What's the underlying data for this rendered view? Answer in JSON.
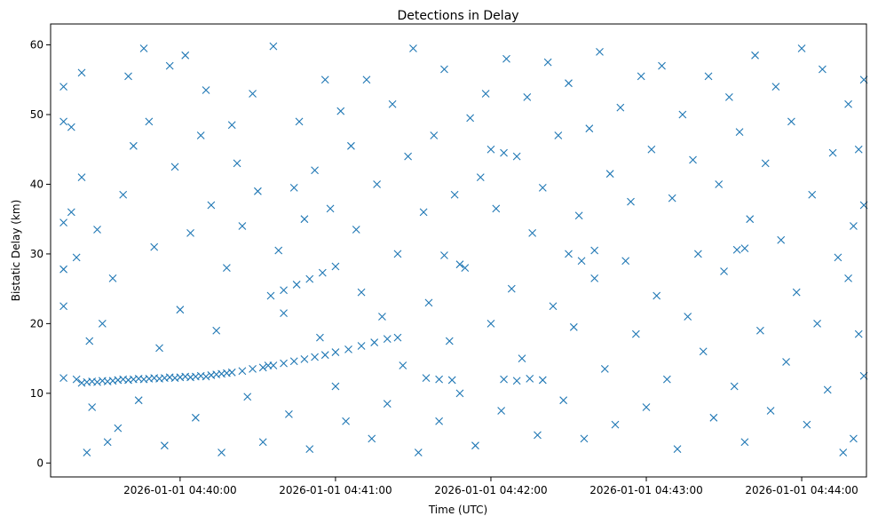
{
  "chart_data": {
    "type": "scatter",
    "title": "Detections in Delay",
    "xlabel": "Time (UTC)",
    "ylabel": "Bistatic Delay (km)",
    "x_ticks": [
      "2026-01-01 04:40:00",
      "2026-01-01 04:41:00",
      "2026-01-01 04:42:00",
      "2026-01-01 04:43:00",
      "2026-01-01 04:44:00"
    ],
    "y_ticks": [
      "0",
      "10",
      "20",
      "30",
      "40",
      "50",
      "60"
    ],
    "xlim": [
      "2026-01-01 04:39:10",
      "2026-01-01 04:44:25"
    ],
    "ylim": [
      -2,
      63
    ],
    "marker": "x",
    "color": "#1f77b4",
    "grid": false,
    "x_format": "time-of-day (HH:MM:SS) on 2026-01-01",
    "series": [
      {
        "points": [
          [
            "04:39:20",
            12.0
          ],
          [
            "04:39:22",
            11.5
          ],
          [
            "04:39:24",
            11.6
          ],
          [
            "04:39:26",
            11.7
          ],
          [
            "04:39:28",
            11.6
          ],
          [
            "04:39:30",
            11.8
          ],
          [
            "04:39:32",
            11.7
          ],
          [
            "04:39:34",
            11.8
          ],
          [
            "04:39:36",
            11.9
          ],
          [
            "04:39:38",
            12.0
          ],
          [
            "04:39:40",
            11.9
          ],
          [
            "04:39:42",
            12.0
          ],
          [
            "04:39:44",
            12.1
          ],
          [
            "04:39:46",
            12.0
          ],
          [
            "04:39:48",
            12.1
          ],
          [
            "04:39:50",
            12.2
          ],
          [
            "04:39:52",
            12.1
          ],
          [
            "04:39:54",
            12.2
          ],
          [
            "04:39:56",
            12.3
          ],
          [
            "04:39:58",
            12.2
          ],
          [
            "04:40:00",
            12.3
          ],
          [
            "04:40:02",
            12.4
          ],
          [
            "04:40:04",
            12.3
          ],
          [
            "04:40:06",
            12.4
          ],
          [
            "04:40:08",
            12.5
          ],
          [
            "04:40:10",
            12.4
          ],
          [
            "04:40:12",
            12.6
          ],
          [
            "04:40:14",
            12.7
          ],
          [
            "04:40:16",
            12.8
          ],
          [
            "04:40:18",
            12.9
          ],
          [
            "04:40:20",
            13.0
          ],
          [
            "04:40:24",
            13.2
          ],
          [
            "04:40:28",
            13.5
          ],
          [
            "04:40:32",
            13.7
          ],
          [
            "04:40:36",
            14.0
          ],
          [
            "04:40:40",
            14.3
          ],
          [
            "04:40:44",
            14.6
          ],
          [
            "04:40:48",
            14.9
          ],
          [
            "04:40:52",
            15.2
          ],
          [
            "04:40:56",
            15.5
          ],
          [
            "04:41:00",
            15.9
          ],
          [
            "04:41:05",
            16.3
          ],
          [
            "04:41:10",
            16.8
          ],
          [
            "04:41:15",
            17.3
          ],
          [
            "04:41:20",
            17.8
          ],
          [
            "04:41:24",
            18.0
          ],
          [
            "04:40:35",
            24.0
          ],
          [
            "04:40:40",
            24.8
          ],
          [
            "04:40:45",
            25.6
          ],
          [
            "04:40:50",
            26.4
          ],
          [
            "04:40:55",
            27.3
          ],
          [
            "04:41:00",
            28.2
          ],
          [
            "04:41:35",
            12.2
          ],
          [
            "04:41:40",
            12.0
          ],
          [
            "04:41:45",
            11.9
          ],
          [
            "04:42:05",
            12.0
          ],
          [
            "04:42:10",
            11.8
          ],
          [
            "04:42:15",
            12.1
          ],
          [
            "04:42:20",
            11.9
          ],
          [
            "04:42:00",
            45.0
          ],
          [
            "04:42:05",
            44.5
          ],
          [
            "04:42:30",
            30.0
          ],
          [
            "04:42:35",
            29.0
          ],
          [
            "04:42:40",
            30.5
          ],
          [
            "04:43:35",
            30.6
          ],
          [
            "04:43:38",
            30.8
          ],
          [
            "04:41:42",
            29.8
          ],
          [
            "04:41:48",
            28.5
          ],
          [
            "04:39:15",
            54.0
          ],
          [
            "04:39:15",
            49.0
          ],
          [
            "04:39:15",
            34.5
          ],
          [
            "04:39:15",
            27.8
          ],
          [
            "04:39:15",
            22.5
          ],
          [
            "04:39:15",
            12.2
          ],
          [
            "04:39:18",
            48.2
          ],
          [
            "04:39:18",
            36.0
          ],
          [
            "04:39:20",
            29.5
          ],
          [
            "04:39:22",
            56.0
          ],
          [
            "04:39:22",
            41.0
          ],
          [
            "04:39:24",
            1.5
          ],
          [
            "04:39:25",
            17.5
          ],
          [
            "04:39:26",
            8.0
          ],
          [
            "04:39:28",
            33.5
          ],
          [
            "04:39:30",
            20.0
          ],
          [
            "04:39:32",
            3.0
          ],
          [
            "04:39:34",
            26.5
          ],
          [
            "04:39:36",
            5.0
          ],
          [
            "04:39:38",
            38.5
          ],
          [
            "04:39:40",
            55.5
          ],
          [
            "04:39:42",
            45.5
          ],
          [
            "04:39:44",
            9.0
          ],
          [
            "04:39:46",
            59.5
          ],
          [
            "04:39:48",
            49.0
          ],
          [
            "04:39:50",
            31.0
          ],
          [
            "04:39:52",
            16.5
          ],
          [
            "04:39:54",
            2.5
          ],
          [
            "04:39:56",
            57.0
          ],
          [
            "04:39:58",
            42.5
          ],
          [
            "04:40:00",
            22.0
          ],
          [
            "04:40:02",
            58.5
          ],
          [
            "04:40:04",
            33.0
          ],
          [
            "04:40:06",
            6.5
          ],
          [
            "04:40:08",
            47.0
          ],
          [
            "04:40:10",
            53.5
          ],
          [
            "04:40:12",
            37.0
          ],
          [
            "04:40:14",
            19.0
          ],
          [
            "04:40:16",
            1.5
          ],
          [
            "04:40:18",
            28.0
          ],
          [
            "04:40:20",
            48.5
          ],
          [
            "04:40:22",
            43.0
          ],
          [
            "04:40:24",
            34.0
          ],
          [
            "04:40:26",
            9.5
          ],
          [
            "04:40:28",
            53.0
          ],
          [
            "04:40:30",
            39.0
          ],
          [
            "04:40:32",
            3.0
          ],
          [
            "04:40:34",
            14.0
          ],
          [
            "04:40:36",
            59.8
          ],
          [
            "04:40:38",
            30.5
          ],
          [
            "04:40:40",
            21.5
          ],
          [
            "04:40:42",
            7.0
          ],
          [
            "04:40:44",
            39.5
          ],
          [
            "04:40:46",
            49.0
          ],
          [
            "04:40:48",
            35.0
          ],
          [
            "04:40:50",
            2.0
          ],
          [
            "04:40:52",
            42.0
          ],
          [
            "04:40:54",
            18.0
          ],
          [
            "04:40:56",
            55.0
          ],
          [
            "04:40:58",
            36.5
          ],
          [
            "04:41:00",
            11.0
          ],
          [
            "04:41:02",
            50.5
          ],
          [
            "04:41:04",
            6.0
          ],
          [
            "04:41:06",
            45.5
          ],
          [
            "04:41:08",
            33.5
          ],
          [
            "04:41:10",
            24.5
          ],
          [
            "04:41:12",
            55.0
          ],
          [
            "04:41:14",
            3.5
          ],
          [
            "04:41:16",
            40.0
          ],
          [
            "04:41:18",
            21.0
          ],
          [
            "04:41:20",
            8.5
          ],
          [
            "04:41:22",
            51.5
          ],
          [
            "04:41:24",
            30.0
          ],
          [
            "04:41:26",
            14.0
          ],
          [
            "04:41:28",
            44.0
          ],
          [
            "04:41:30",
            59.5
          ],
          [
            "04:41:32",
            1.5
          ],
          [
            "04:41:34",
            36.0
          ],
          [
            "04:41:36",
            23.0
          ],
          [
            "04:41:38",
            47.0
          ],
          [
            "04:41:40",
            6.0
          ],
          [
            "04:41:42",
            56.5
          ],
          [
            "04:41:44",
            17.5
          ],
          [
            "04:41:46",
            38.5
          ],
          [
            "04:41:48",
            10.0
          ],
          [
            "04:41:50",
            28.0
          ],
          [
            "04:41:52",
            49.5
          ],
          [
            "04:41:54",
            2.5
          ],
          [
            "04:41:56",
            41.0
          ],
          [
            "04:41:58",
            53.0
          ],
          [
            "04:42:00",
            20.0
          ],
          [
            "04:42:02",
            36.5
          ],
          [
            "04:42:04",
            7.5
          ],
          [
            "04:42:06",
            58.0
          ],
          [
            "04:42:08",
            25.0
          ],
          [
            "04:42:10",
            44.0
          ],
          [
            "04:42:12",
            15.0
          ],
          [
            "04:42:14",
            52.5
          ],
          [
            "04:42:16",
            33.0
          ],
          [
            "04:42:18",
            4.0
          ],
          [
            "04:42:20",
            39.5
          ],
          [
            "04:42:22",
            57.5
          ],
          [
            "04:42:24",
            22.5
          ],
          [
            "04:42:26",
            47.0
          ],
          [
            "04:42:28",
            9.0
          ],
          [
            "04:42:30",
            54.5
          ],
          [
            "04:42:32",
            19.5
          ],
          [
            "04:42:34",
            35.5
          ],
          [
            "04:42:36",
            3.5
          ],
          [
            "04:42:38",
            48.0
          ],
          [
            "04:42:40",
            26.5
          ],
          [
            "04:42:42",
            59.0
          ],
          [
            "04:42:44",
            13.5
          ],
          [
            "04:42:46",
            41.5
          ],
          [
            "04:42:48",
            5.5
          ],
          [
            "04:42:50",
            51.0
          ],
          [
            "04:42:52",
            29.0
          ],
          [
            "04:42:54",
            37.5
          ],
          [
            "04:42:56",
            18.5
          ],
          [
            "04:42:58",
            55.5
          ],
          [
            "04:43:00",
            8.0
          ],
          [
            "04:43:02",
            45.0
          ],
          [
            "04:43:04",
            24.0
          ],
          [
            "04:43:06",
            57.0
          ],
          [
            "04:43:08",
            12.0
          ],
          [
            "04:43:10",
            38.0
          ],
          [
            "04:43:12",
            2.0
          ],
          [
            "04:43:14",
            50.0
          ],
          [
            "04:43:16",
            21.0
          ],
          [
            "04:43:18",
            43.5
          ],
          [
            "04:43:20",
            30.0
          ],
          [
            "04:43:22",
            16.0
          ],
          [
            "04:43:24",
            55.5
          ],
          [
            "04:43:26",
            6.5
          ],
          [
            "04:43:28",
            40.0
          ],
          [
            "04:43:30",
            27.5
          ],
          [
            "04:43:32",
            52.5
          ],
          [
            "04:43:34",
            11.0
          ],
          [
            "04:43:36",
            47.5
          ],
          [
            "04:43:38",
            3.0
          ],
          [
            "04:43:40",
            35.0
          ],
          [
            "04:43:42",
            58.5
          ],
          [
            "04:43:44",
            19.0
          ],
          [
            "04:43:46",
            43.0
          ],
          [
            "04:43:48",
            7.5
          ],
          [
            "04:43:50",
            54.0
          ],
          [
            "04:43:52",
            32.0
          ],
          [
            "04:43:54",
            14.5
          ],
          [
            "04:43:56",
            49.0
          ],
          [
            "04:43:58",
            24.5
          ],
          [
            "04:44:00",
            59.5
          ],
          [
            "04:44:02",
            5.5
          ],
          [
            "04:44:04",
            38.5
          ],
          [
            "04:44:06",
            20.0
          ],
          [
            "04:44:08",
            56.5
          ],
          [
            "04:44:10",
            10.5
          ],
          [
            "04:44:12",
            44.5
          ],
          [
            "04:44:14",
            29.5
          ],
          [
            "04:44:16",
            1.5
          ],
          [
            "04:44:18",
            51.5
          ],
          [
            "04:44:20",
            34.0
          ],
          [
            "04:44:22",
            18.5
          ],
          [
            "04:44:24",
            37.0
          ],
          [
            "04:44:24",
            55.0
          ],
          [
            "04:44:24",
            12.5
          ],
          [
            "04:44:22",
            45.0
          ],
          [
            "04:44:20",
            3.5
          ],
          [
            "04:44:18",
            26.5
          ]
        ]
      }
    ]
  }
}
